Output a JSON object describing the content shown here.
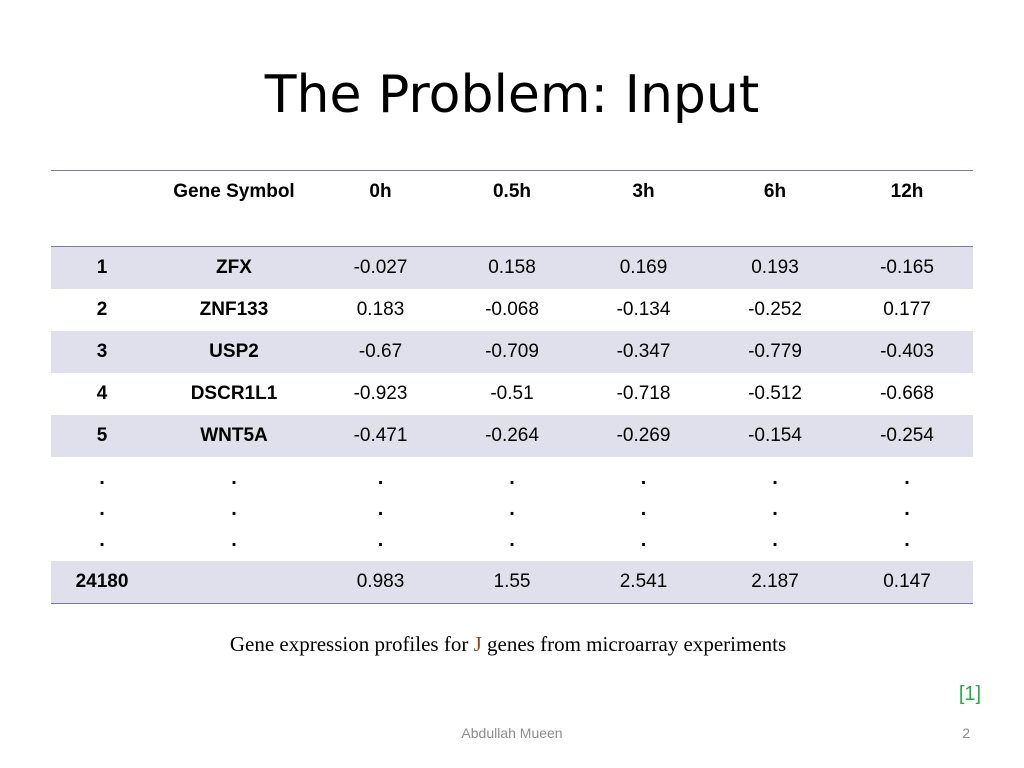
{
  "slide": {
    "title": "The Problem: Input",
    "caption": {
      "before": "Gene expression profiles for ",
      "variable": "J",
      "after": " genes from microarray experiments"
    },
    "citation": "[1]",
    "footer": {
      "author": "Abdullah Mueen",
      "page_number": "2"
    }
  },
  "table": {
    "headers": [
      "",
      "Gene Symbol",
      "0h",
      "0.5h",
      "3h",
      "6h",
      "12h"
    ],
    "rows": [
      {
        "index": "1",
        "symbol": "ZFX",
        "values": [
          "-0.027",
          "0.158",
          "0.169",
          "0.193",
          "-0.165"
        ]
      },
      {
        "index": "2",
        "symbol": "ZNF133",
        "values": [
          "0.183",
          "-0.068",
          "-0.134",
          "-0.252",
          "0.177"
        ]
      },
      {
        "index": "3",
        "symbol": "USP2",
        "values": [
          "-0.67",
          "-0.709",
          "-0.347",
          "-0.779",
          "-0.403"
        ]
      },
      {
        "index": "4",
        "symbol": "DSCR1L1",
        "values": [
          "-0.923",
          "-0.51",
          "-0.718",
          "-0.512",
          "-0.668"
        ]
      },
      {
        "index": "5",
        "symbol": "WNT5A",
        "values": [
          "-0.471",
          "-0.264",
          "-0.269",
          "-0.154",
          "-0.254"
        ]
      }
    ],
    "ellipsis": ".",
    "last_row": {
      "index": "24180",
      "symbol": "",
      "values": [
        "0.983",
        "1.55",
        "2.541",
        "2.187",
        "0.147"
      ]
    }
  },
  "colors": {
    "table_rule": "#7a7aa8",
    "row_shade": "#e0e0ec",
    "citation": "#2aa84a",
    "caption_variable": "#8a4a1c",
    "footer_text": "#8c8c8c"
  }
}
